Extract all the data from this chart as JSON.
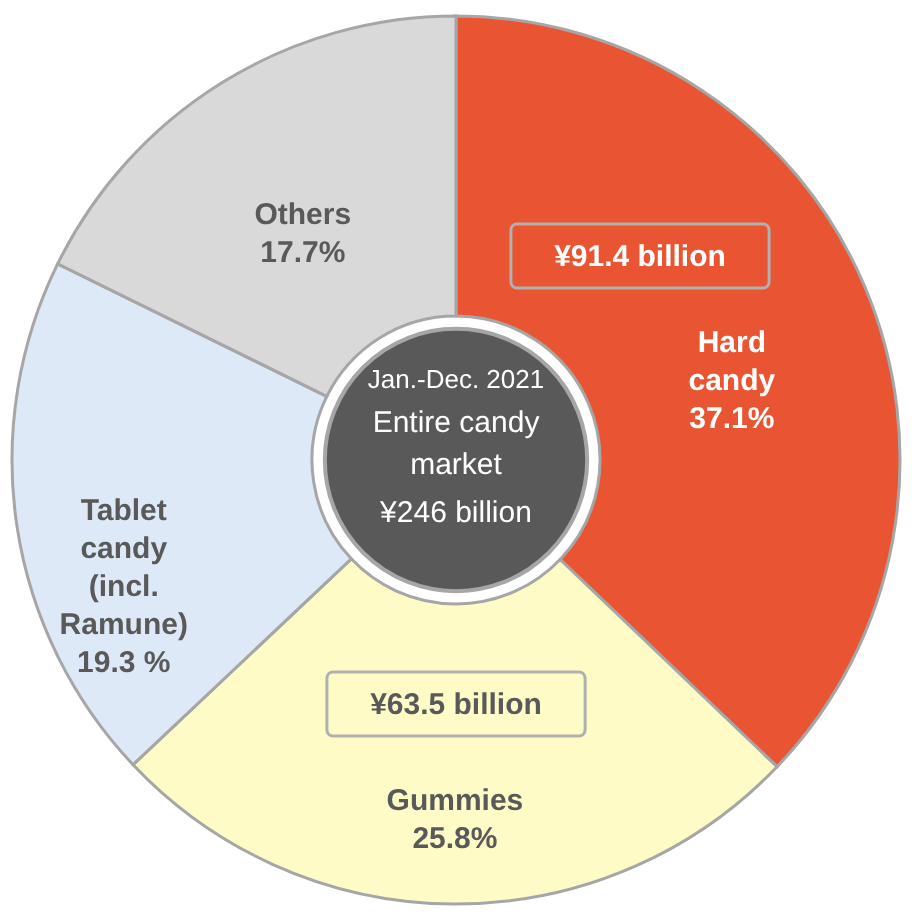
{
  "chart_data": {
    "type": "donut",
    "categories": [
      "Hard candy",
      "Gummies",
      "Tablet candy (incl. Ramune)",
      "Others"
    ],
    "values": [
      37.1,
      25.8,
      19.3,
      17.7
    ],
    "value_labels": [
      "37.1%",
      "25.8%",
      "19.3 %",
      "17.7%"
    ],
    "colors": [
      "#e95532",
      "#fefbc6",
      "#dde9f6",
      "#d9d9d9"
    ],
    "annotations": [
      "¥91.4 billion",
      "¥63.5 billion",
      "Jan.-Dec. 2021",
      "Entire candy market",
      "¥246 billion"
    ]
  }
}
